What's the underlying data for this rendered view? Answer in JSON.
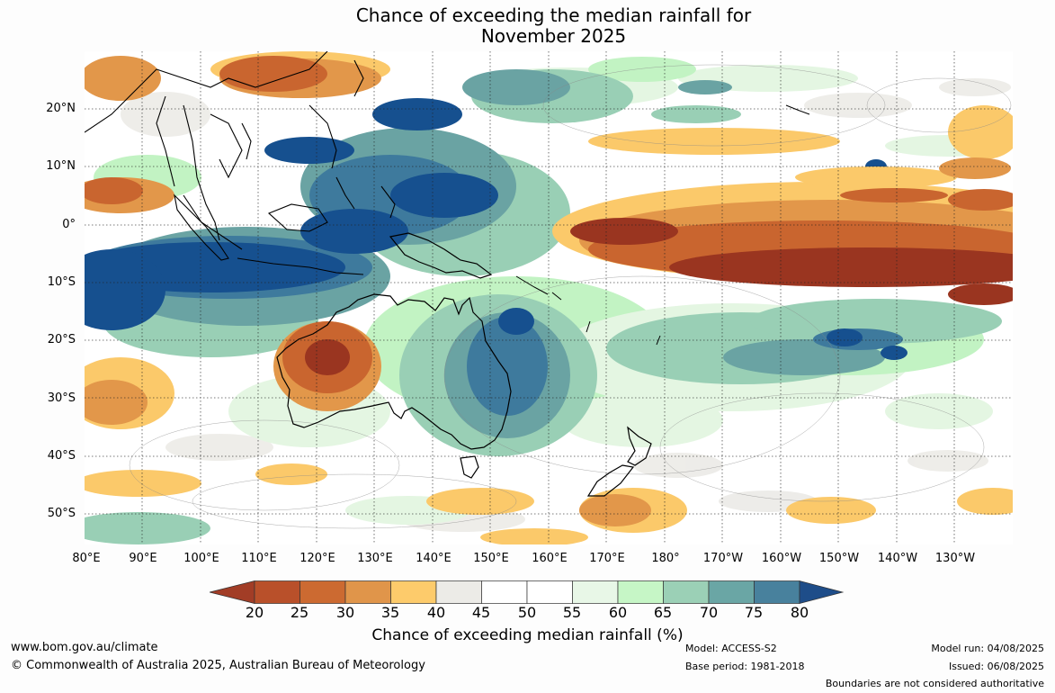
{
  "title_line1": "Chance of exceeding the median rainfall for",
  "title_line2": "November 2025",
  "lat_labels": [
    "20°N",
    "10°N",
    "0°",
    "10°S",
    "20°S",
    "30°S",
    "40°S",
    "50°S"
  ],
  "lon_labels": [
    "80°E",
    "90°E",
    "100°E",
    "110°E",
    "120°E",
    "130°E",
    "140°E",
    "150°E",
    "160°E",
    "170°E",
    "180°",
    "170°W",
    "160°W",
    "150°W",
    "140°W",
    "130°W"
  ],
  "colorbar": {
    "ticks": [
      "20",
      "25",
      "30",
      "35",
      "40",
      "45",
      "50",
      "55",
      "60",
      "65",
      "70",
      "75",
      "80"
    ],
    "colors": [
      "#b9502a",
      "#cc6a31",
      "#e0954a",
      "#fdcb6b",
      "#ecebe7",
      "#ffffff",
      "#ffffff",
      "#e8f7e7",
      "#c6f6c6",
      "#9bd0b6",
      "#6aa6a5",
      "#48819d"
    ],
    "low_extend_color": "#a23d26",
    "high_extend_color": "#1e4d89",
    "label": "Chance of exceeding median rainfall (%)"
  },
  "map_colors": {
    "very_low": "#9a3520",
    "low": "#c9652f",
    "mid_low": "#e2974a",
    "below": "#fbc96a",
    "neutral": "#ecebe7",
    "white": "#ffffff",
    "light_green": "#e4f6e2",
    "green": "#c2f3c3",
    "teal_light": "#99cfb5",
    "teal": "#6aa3a3",
    "blue_teal": "#3e7a9d",
    "dark_blue": "#16508f",
    "coast": "#000000"
  },
  "footer": {
    "website": "www.bom.gov.au/climate",
    "copyright": "© Commonwealth of Australia 2025, Australian Bureau of Meteorology",
    "model": "Model: ACCESS-S2",
    "base_period": "Base period: 1981-2018",
    "model_run": "Model run: 04/08/2025",
    "issued": "Issued: 06/08/2025",
    "disclaimer": "Boundaries are not considered authoritative"
  }
}
